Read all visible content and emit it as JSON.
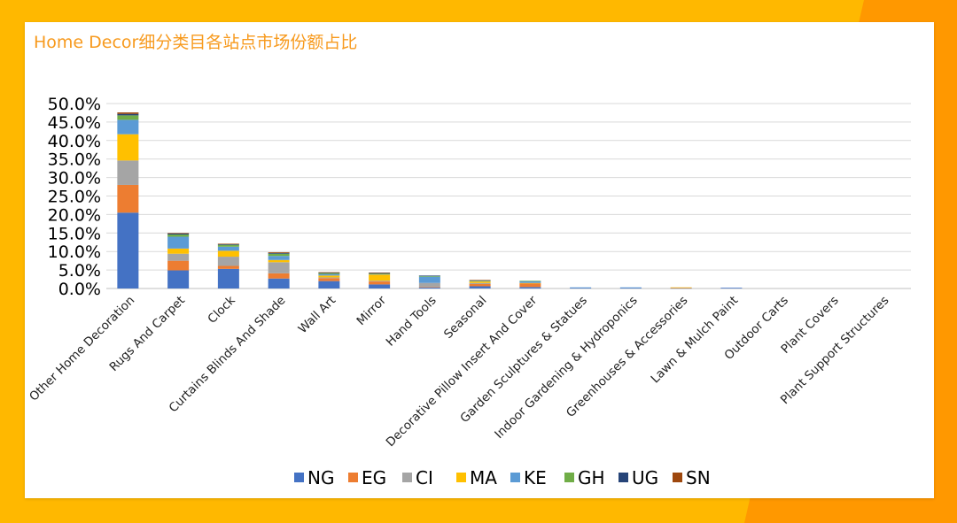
{
  "page": {
    "title": "Home Decor细分类目各站点市场份额占比"
  },
  "colors": {
    "background": "#FFB800",
    "accent_stripe": "#FF9800",
    "card": "#ffffff",
    "title": "#F79A1E",
    "gridline": "#D9D9D9"
  },
  "chart_data": {
    "type": "bar",
    "stacked": true,
    "title": "Home Decor细分类目各站点市场份额占比",
    "xlabel": "",
    "ylabel": "",
    "ylim": [
      0,
      50
    ],
    "yticks": [
      "0.0%",
      "5.0%",
      "10.0%",
      "15.0%",
      "20.0%",
      "25.0%",
      "30.0%",
      "35.0%",
      "40.0%",
      "45.0%",
      "50.0%"
    ],
    "grid": true,
    "legend_position": "bottom",
    "categories": [
      "Other Home Decoration",
      "Rugs And Carpet",
      "Clock",
      "Curtains Blinds And Shade",
      "Wall Art",
      "Mirror",
      "Hand Tools",
      "Seasonal",
      "Decorative Pillow Insert And Cover",
      "Garden Sculptures & Statues",
      "Indoor Gardening & Hydroponics",
      "Greenhouses & Accessories",
      "Lawn & Mulch Paint",
      "Outdoor Carts",
      "Plant Covers",
      "Plant Support Structures"
    ],
    "series": [
      {
        "name": "NG",
        "color": "#4472C4",
        "values": [
          20.5,
          4.9,
          5.3,
          2.7,
          2.0,
          1.1,
          0.3,
          0.6,
          0.4,
          0.2,
          0.2,
          0.1,
          0.2,
          0,
          0,
          0
        ]
      },
      {
        "name": "EG",
        "color": "#ED7D31",
        "values": [
          7.5,
          2.6,
          0.8,
          1.4,
          0.8,
          0.8,
          0.1,
          0.6,
          1.0,
          0,
          0,
          0.1,
          0,
          0,
          0,
          0
        ]
      },
      {
        "name": "CI",
        "color": "#A5A5A5",
        "values": [
          6.6,
          1.9,
          2.5,
          3.0,
          0.2,
          0.2,
          1.1,
          0.3,
          0,
          0,
          0,
          0,
          0,
          0,
          0,
          0
        ]
      },
      {
        "name": "MA",
        "color": "#FFC000",
        "values": [
          7.1,
          1.4,
          1.6,
          0.6,
          0.5,
          1.7,
          0,
          0.4,
          0.1,
          0,
          0,
          0.1,
          0,
          0,
          0,
          0
        ]
      },
      {
        "name": "KE",
        "color": "#5B9BD5",
        "values": [
          3.9,
          3.2,
          1.1,
          1.1,
          0.4,
          0.1,
          1.7,
          0.2,
          0.5,
          0.1,
          0.1,
          0,
          0,
          0,
          0,
          0
        ]
      },
      {
        "name": "GH",
        "color": "#70AD47",
        "values": [
          1.2,
          0.6,
          0.5,
          0.6,
          0.3,
          0.2,
          0.2,
          0.1,
          0.1,
          0,
          0,
          0,
          0,
          0,
          0,
          0
        ]
      },
      {
        "name": "UG",
        "color": "#264478",
        "values": [
          0.4,
          0.3,
          0.2,
          0.2,
          0.1,
          0.1,
          0.1,
          0,
          0,
          0,
          0,
          0,
          0,
          0,
          0,
          0
        ]
      },
      {
        "name": "SN",
        "color": "#9E480E",
        "values": [
          0.4,
          0.1,
          0.1,
          0.2,
          0.1,
          0.1,
          0,
          0.1,
          0,
          0,
          0,
          0,
          0,
          0,
          0,
          0
        ]
      }
    ]
  }
}
